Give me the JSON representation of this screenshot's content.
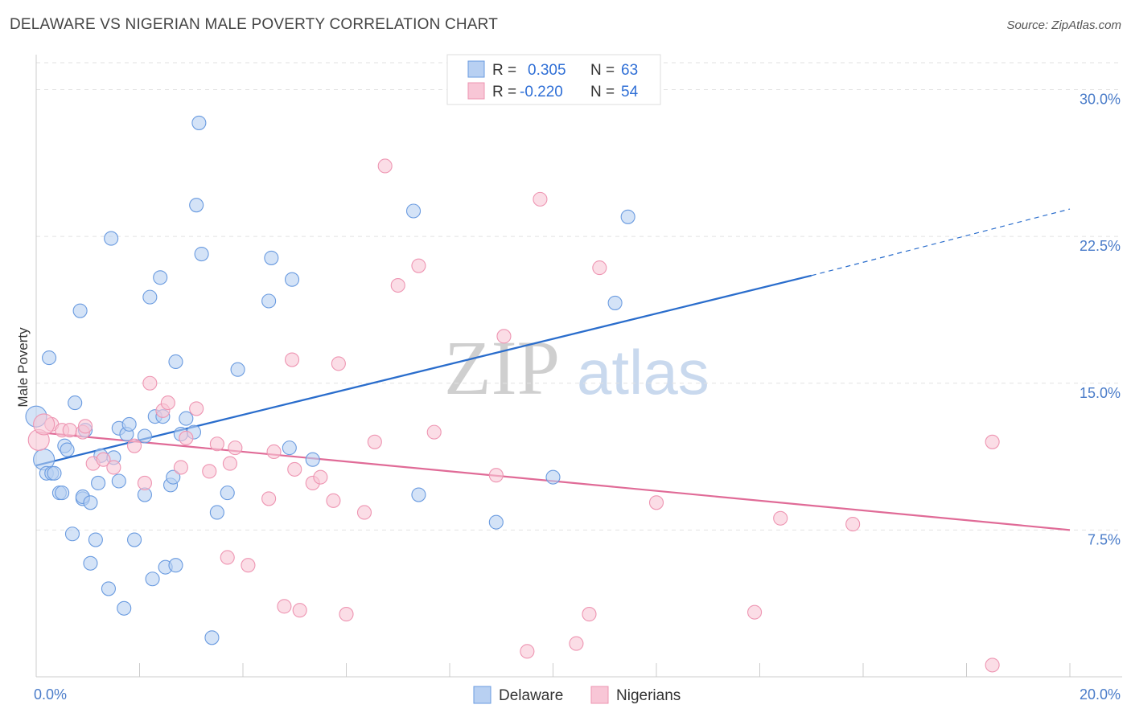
{
  "title": "DELAWARE VS NIGERIAN MALE POVERTY CORRELATION CHART",
  "source": "Source: ZipAtlas.com",
  "watermark": {
    "part1": "ZIP",
    "part2": "atlas"
  },
  "chart_data": {
    "type": "scatter",
    "title": "DELAWARE VS NIGERIAN MALE POVERTY CORRELATION CHART",
    "xlabel": "",
    "ylabel": "Male Poverty",
    "xlim": [
      0,
      20
    ],
    "ylim": [
      0,
      31.5
    ],
    "x_tick_labels": [
      {
        "value": 0,
        "label": "0.0%"
      },
      {
        "value": 20,
        "label": "20.0%"
      }
    ],
    "x_minor_ticks": [
      0,
      2,
      4,
      6,
      8,
      10,
      12,
      14,
      16,
      18,
      20
    ],
    "y_ticks": [
      {
        "value": 7.5,
        "label": "7.5%"
      },
      {
        "value": 15.0,
        "label": "15.0%"
      },
      {
        "value": 22.5,
        "label": "22.5%"
      },
      {
        "value": 30.0,
        "label": "30.0%"
      }
    ],
    "grid": true,
    "legend_position": "bottom-center",
    "stats": [
      {
        "r_label": "R =",
        "r_value": "0.305",
        "n_label": "N =",
        "n_value": "63"
      },
      {
        "r_label": "R =",
        "r_value": "-0.220",
        "n_label": "N =",
        "n_value": "54"
      }
    ],
    "series": [
      {
        "name": "Delaware",
        "fill": "#b8d0f2",
        "stroke": "#6a9be0",
        "line_color": "#2a6dcc",
        "trend": {
          "x0": 0,
          "y0": 10.8,
          "x1": 15.0,
          "y1": 20.5,
          "dash_to_x": 20.0,
          "dash_to_y": 23.9
        },
        "points": [
          [
            0.0,
            13.3
          ],
          [
            0.15,
            11.1
          ],
          [
            0.2,
            10.4
          ],
          [
            0.25,
            16.3
          ],
          [
            0.3,
            10.4
          ],
          [
            0.35,
            10.4
          ],
          [
            0.45,
            9.4
          ],
          [
            0.5,
            9.4
          ],
          [
            0.55,
            11.8
          ],
          [
            0.6,
            11.6
          ],
          [
            0.7,
            7.3
          ],
          [
            0.75,
            14.0
          ],
          [
            0.85,
            18.7
          ],
          [
            0.9,
            9.1
          ],
          [
            0.9,
            9.2
          ],
          [
            0.95,
            12.6
          ],
          [
            1.05,
            8.9
          ],
          [
            1.15,
            7.0
          ],
          [
            1.2,
            9.9
          ],
          [
            1.25,
            11.3
          ],
          [
            1.05,
            5.8
          ],
          [
            1.4,
            4.5
          ],
          [
            1.45,
            22.4
          ],
          [
            1.5,
            11.2
          ],
          [
            1.6,
            12.7
          ],
          [
            1.6,
            10.0
          ],
          [
            1.7,
            3.5
          ],
          [
            1.75,
            12.4
          ],
          [
            1.8,
            12.9
          ],
          [
            1.9,
            7.0
          ],
          [
            2.1,
            9.3
          ],
          [
            2.2,
            19.4
          ],
          [
            2.25,
            5.0
          ],
          [
            2.3,
            13.3
          ],
          [
            2.4,
            20.4
          ],
          [
            2.45,
            13.3
          ],
          [
            2.5,
            5.6
          ],
          [
            2.6,
            9.8
          ],
          [
            2.65,
            10.2
          ],
          [
            2.7,
            16.1
          ],
          [
            2.7,
            5.7
          ],
          [
            2.8,
            12.4
          ],
          [
            2.9,
            13.2
          ],
          [
            3.05,
            12.5
          ],
          [
            3.1,
            24.1
          ],
          [
            3.15,
            28.3
          ],
          [
            3.2,
            21.6
          ],
          [
            3.4,
            2.0
          ],
          [
            3.5,
            8.4
          ],
          [
            3.7,
            9.4
          ],
          [
            3.9,
            15.7
          ],
          [
            4.5,
            19.2
          ],
          [
            4.55,
            21.4
          ],
          [
            4.95,
            20.3
          ],
          [
            4.9,
            11.7
          ],
          [
            5.35,
            11.1
          ],
          [
            7.3,
            23.8
          ],
          [
            7.4,
            9.3
          ],
          [
            8.9,
            7.9
          ],
          [
            10.0,
            10.2
          ],
          [
            11.2,
            19.1
          ],
          [
            11.45,
            23.5
          ],
          [
            2.1,
            12.3
          ]
        ]
      },
      {
        "name": "Nigerians",
        "fill": "#f8c6d6",
        "stroke": "#ee95b2",
        "line_color": "#e06b97",
        "trend": {
          "x0": 0,
          "y0": 12.5,
          "x1": 20.0,
          "y1": 7.5
        },
        "points": [
          [
            0.05,
            12.1
          ],
          [
            0.3,
            12.9
          ],
          [
            0.5,
            12.6
          ],
          [
            0.65,
            12.6
          ],
          [
            0.9,
            12.5
          ],
          [
            0.95,
            12.8
          ],
          [
            1.1,
            10.9
          ],
          [
            1.3,
            11.1
          ],
          [
            1.5,
            10.7
          ],
          [
            1.9,
            11.8
          ],
          [
            2.1,
            9.9
          ],
          [
            2.2,
            15.0
          ],
          [
            2.45,
            13.6
          ],
          [
            2.55,
            14.0
          ],
          [
            2.8,
            10.7
          ],
          [
            2.9,
            12.2
          ],
          [
            3.1,
            13.7
          ],
          [
            3.35,
            10.5
          ],
          [
            3.5,
            11.9
          ],
          [
            3.7,
            6.1
          ],
          [
            3.75,
            10.9
          ],
          [
            3.85,
            11.7
          ],
          [
            4.1,
            5.7
          ],
          [
            4.5,
            9.1
          ],
          [
            4.6,
            11.5
          ],
          [
            4.8,
            3.6
          ],
          [
            4.95,
            16.2
          ],
          [
            5.0,
            10.6
          ],
          [
            5.1,
            3.4
          ],
          [
            5.35,
            9.9
          ],
          [
            5.5,
            10.2
          ],
          [
            5.75,
            9.0
          ],
          [
            5.85,
            16.0
          ],
          [
            6.0,
            3.2
          ],
          [
            6.35,
            8.4
          ],
          [
            6.55,
            12.0
          ],
          [
            6.75,
            26.1
          ],
          [
            7.0,
            20.0
          ],
          [
            7.4,
            21.0
          ],
          [
            7.7,
            12.5
          ],
          [
            8.9,
            10.3
          ],
          [
            9.05,
            17.4
          ],
          [
            9.5,
            1.3
          ],
          [
            9.75,
            24.4
          ],
          [
            10.45,
            1.7
          ],
          [
            10.7,
            3.2
          ],
          [
            10.9,
            20.9
          ],
          [
            12.0,
            8.9
          ],
          [
            13.9,
            3.3
          ],
          [
            14.4,
            8.1
          ],
          [
            15.8,
            7.8
          ],
          [
            18.5,
            0.6
          ],
          [
            18.5,
            12.0
          ],
          [
            0.15,
            12.9
          ]
        ]
      }
    ]
  }
}
